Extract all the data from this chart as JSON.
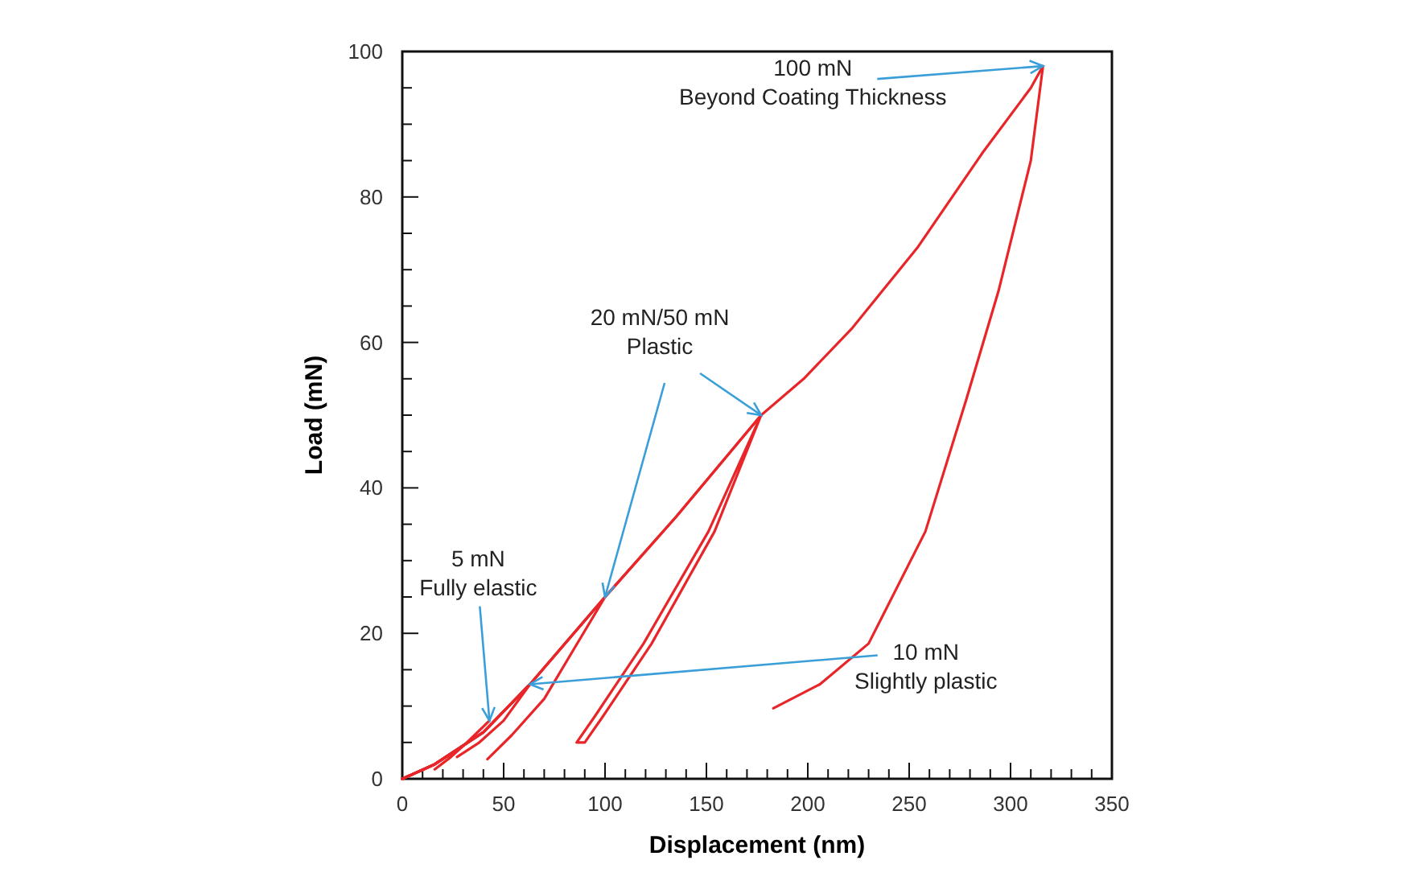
{
  "chart_data": {
    "type": "line",
    "xlabel": "Displacement (nm)",
    "ylabel": "Load (mN)",
    "xlim": [
      0,
      350
    ],
    "ylim": [
      0,
      100
    ],
    "xticks": [
      0,
      {
        "value": 10,
        "label": null
      },
      {
        "value": 20,
        "label": null
      },
      {
        "value": 30,
        "label": null
      },
      {
        "value": 40,
        "label": null
      },
      50,
      {
        "value": 60,
        "label": null
      },
      {
        "value": 70,
        "label": null
      },
      {
        "value": 80,
        "label": null
      },
      {
        "value": 90,
        "label": null
      },
      100,
      {
        "value": 110,
        "label": null
      },
      {
        "value": 120,
        "label": null
      },
      {
        "value": 130,
        "label": null
      },
      {
        "value": 140,
        "label": null
      },
      150,
      {
        "value": 160,
        "label": null
      },
      {
        "value": 170,
        "label": null
      },
      {
        "value": 180,
        "label": null
      },
      {
        "value": 190,
        "label": null
      },
      200,
      {
        "value": 210,
        "label": null
      },
      {
        "value": 220,
        "label": null
      },
      {
        "value": 230,
        "label": null
      },
      {
        "value": 240,
        "label": null
      },
      250,
      {
        "value": 260,
        "label": null
      },
      {
        "value": 270,
        "label": null
      },
      {
        "value": 280,
        "label": null
      },
      {
        "value": 290,
        "label": null
      },
      300,
      {
        "value": 310,
        "label": null
      },
      {
        "value": 320,
        "label": null
      },
      {
        "value": 330,
        "label": null
      },
      {
        "value": 340,
        "label": null
      },
      350
    ],
    "yticks": [
      0,
      {
        "value": 5,
        "label": null
      },
      {
        "value": 10,
        "label": null
      },
      {
        "value": 15,
        "label": null
      },
      20,
      {
        "value": 25,
        "label": null
      },
      {
        "value": 30,
        "label": null
      },
      {
        "value": 35,
        "label": null
      },
      40,
      {
        "value": 45,
        "label": null
      },
      {
        "value": 50,
        "label": null
      },
      {
        "value": 55,
        "label": null
      },
      60,
      {
        "value": 65,
        "label": null
      },
      {
        "value": 70,
        "label": null
      },
      {
        "value": 75,
        "label": null
      },
      80,
      {
        "value": 85,
        "label": null
      },
      {
        "value": 90,
        "label": null
      },
      {
        "value": 95,
        "label": null
      },
      100
    ],
    "grid": false,
    "marker": "none",
    "line_style": "solid",
    "series": [
      {
        "color": "#e8262a",
        "x": [
          0,
          16,
          40,
          63,
          100,
          135,
          177,
          198,
          222,
          254,
          286,
          310,
          316,
          310,
          294,
          278,
          258,
          230,
          206,
          183
        ],
        "values": [
          0,
          2,
          6.4,
          13,
          25,
          36,
          50,
          55,
          62,
          73,
          86,
          95,
          98,
          85,
          67,
          52,
          34,
          18.6,
          13,
          9.7
        ]
      },
      {
        "color": "#e8262a",
        "x": [
          0,
          16,
          40,
          63,
          100,
          135,
          177,
          151,
          119,
          95,
          86,
          90,
          99,
          123,
          154,
          177
        ],
        "values": [
          0,
          2,
          6.4,
          13,
          25,
          36,
          50,
          34,
          18.6,
          8.6,
          5,
          5,
          8.6,
          18.6,
          34,
          50
        ]
      },
      {
        "color": "#e8262a",
        "x": [
          0,
          16,
          40,
          63,
          100,
          85,
          70,
          54,
          42
        ],
        "values": [
          0,
          2,
          6.4,
          13,
          25,
          18,
          11,
          6,
          2.7
        ]
      },
      {
        "color": "#e8262a",
        "x": [
          0,
          16,
          40,
          63,
          50,
          38,
          27
        ],
        "values": [
          0,
          2,
          6.4,
          13,
          8,
          5,
          3
        ]
      },
      {
        "color": "#e8262a",
        "x": [
          0,
          16,
          30,
          43,
          32,
          24,
          16
        ],
        "values": [
          0,
          2,
          4.5,
          8,
          5,
          3,
          1.3
        ]
      }
    ],
    "annotations": [
      {
        "text": "100 mN\nBeyond Coating Thickness",
        "x": 316,
        "y": 98
      },
      {
        "text": "20 mN/50 mN\nPlastic",
        "x": 177,
        "y": 50
      },
      {
        "text": "10 mN\nSlightly plastic",
        "x": 63,
        "y": 13
      },
      {
        "text": "5 mN\nFully elastic",
        "x": 43,
        "y": 8
      }
    ]
  }
}
